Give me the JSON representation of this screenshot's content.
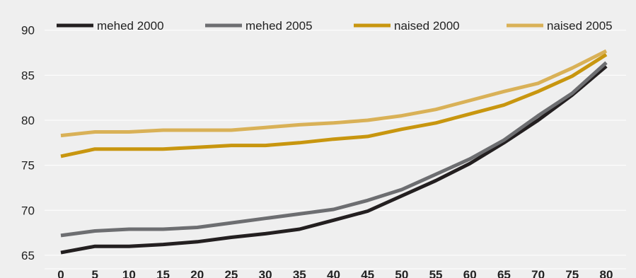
{
  "chart_data": {
    "type": "line",
    "title": "",
    "xlabel": "",
    "ylabel": "",
    "x": [
      0,
      5,
      10,
      15,
      20,
      25,
      30,
      35,
      40,
      45,
      50,
      55,
      60,
      65,
      70,
      75,
      80
    ],
    "ylim": [
      63.5,
      91
    ],
    "yticks": [
      65,
      70,
      75,
      80,
      85,
      90
    ],
    "grid": true,
    "legend_position": "top",
    "series": [
      {
        "name": "mehed  2000",
        "color": "#231f20",
        "values": [
          65.3,
          66.0,
          66.0,
          66.2,
          66.5,
          67.0,
          67.4,
          67.9,
          68.9,
          69.9,
          71.6,
          73.3,
          75.2,
          77.5,
          80.0,
          82.8,
          86.0
        ]
      },
      {
        "name": "mehed  2005",
        "color": "#6d6e71",
        "values": [
          67.2,
          67.7,
          67.9,
          67.9,
          68.1,
          68.6,
          69.1,
          69.6,
          70.1,
          71.1,
          72.3,
          74.0,
          75.7,
          77.8,
          80.5,
          83.0,
          86.4
        ]
      },
      {
        "name": "naised 2000",
        "color": "#c8960f",
        "values": [
          76.0,
          76.8,
          76.8,
          76.8,
          77.0,
          77.2,
          77.2,
          77.5,
          77.9,
          78.2,
          79.0,
          79.7,
          80.7,
          81.7,
          83.2,
          84.9,
          87.3
        ]
      },
      {
        "name": "naised 2005",
        "color": "#d9b157",
        "values": [
          78.3,
          78.7,
          78.7,
          78.9,
          78.9,
          78.9,
          79.2,
          79.5,
          79.7,
          80.0,
          80.5,
          81.2,
          82.2,
          83.2,
          84.1,
          85.8,
          87.7
        ]
      }
    ]
  }
}
